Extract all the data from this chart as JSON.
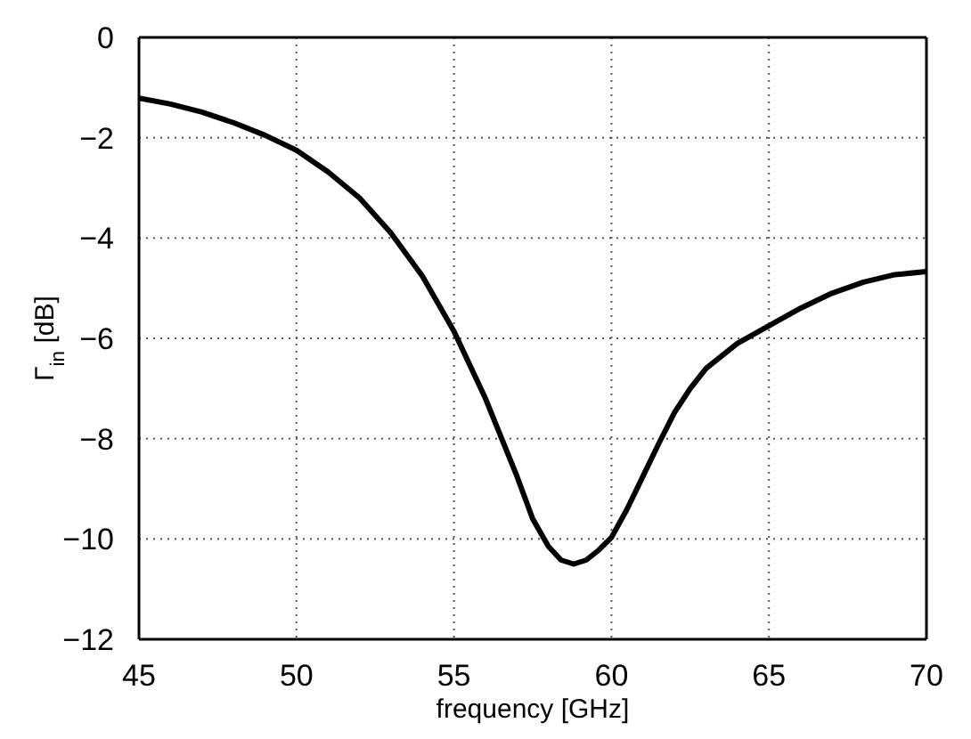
{
  "chart_data": {
    "type": "line",
    "xlabel": "frequency [GHz]",
    "ylabel": "Γ$_{in}$ [dB]",
    "x": [
      45,
      46,
      47,
      48,
      49,
      50,
      51,
      52,
      53,
      54,
      55,
      56,
      57,
      57.5,
      58,
      58.4,
      58.8,
      59.2,
      59.6,
      60,
      60.5,
      61,
      61.5,
      62,
      62.5,
      63,
      64,
      65,
      66,
      67,
      68,
      69,
      70
    ],
    "series": [
      {
        "color": "#000000",
        "values": [
          -1.21,
          -1.33,
          -1.49,
          -1.7,
          -1.95,
          -2.25,
          -2.68,
          -3.2,
          -3.9,
          -4.76,
          -5.86,
          -7.2,
          -8.75,
          -9.6,
          -10.15,
          -10.42,
          -10.5,
          -10.42,
          -10.22,
          -9.97,
          -9.4,
          -8.75,
          -8.1,
          -7.48,
          -7.0,
          -6.6,
          -6.1,
          -5.75,
          -5.4,
          -5.1,
          -4.88,
          -4.73,
          -4.67
        ]
      }
    ],
    "xlim": [
      45,
      70
    ],
    "xticks": [
      45,
      50,
      55,
      60,
      65,
      70
    ],
    "ylim": [
      -12,
      0
    ],
    "yticks": [
      -12,
      -10,
      -8,
      -6,
      -4,
      -2,
      0
    ],
    "grid": true,
    "marker": "none",
    "line_style": "solid"
  }
}
